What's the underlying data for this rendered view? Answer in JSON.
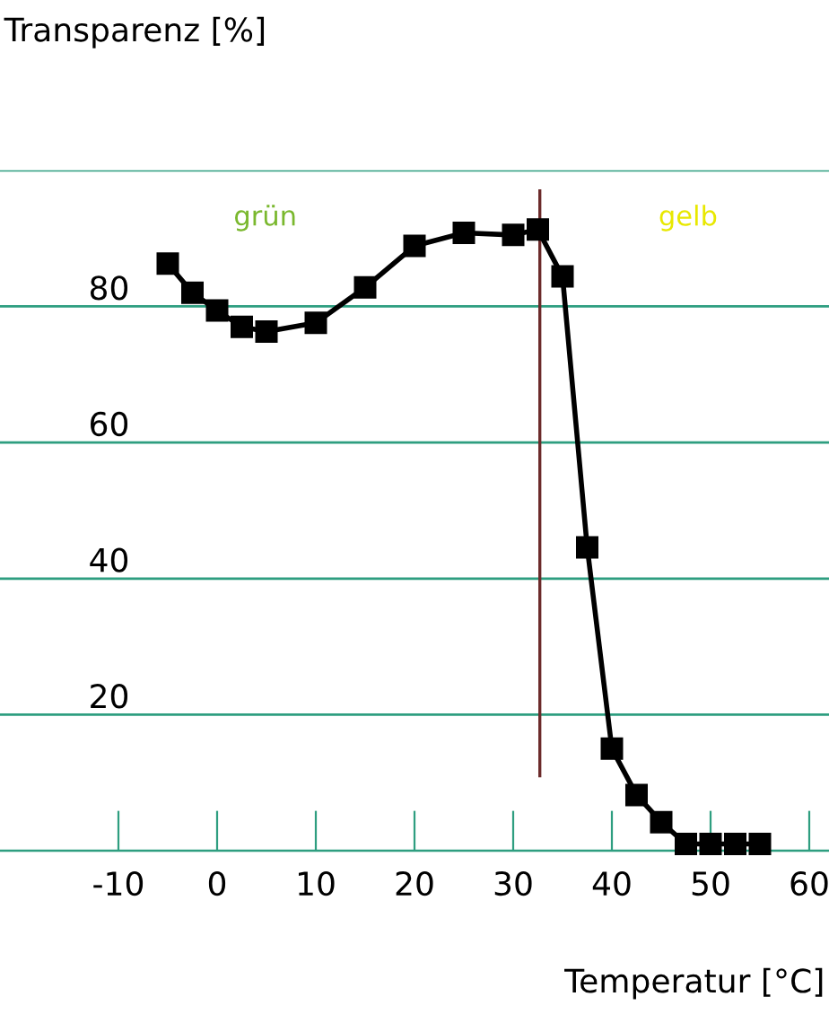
{
  "chart_data": {
    "type": "line",
    "xlabel": "Temperatur [°C]",
    "ylabel": "Transparenz [%]",
    "x": [
      -5,
      -2.5,
      0,
      2.5,
      5,
      10,
      15,
      20,
      25,
      30,
      32.5,
      35,
      37.5,
      40,
      42.5,
      45,
      47.5,
      50,
      52.5,
      55
    ],
    "series": [
      {
        "color": "#000000",
        "values": [
          86.3,
          82,
          79.4,
          77,
          76.3,
          77.6,
          82.8,
          88.9,
          90.8,
          90.5,
          91.3,
          84.4,
          44.6,
          15,
          8.2,
          4.2,
          1,
          1,
          1,
          1
        ]
      }
    ],
    "xlim": [
      -22,
      62
    ],
    "xticks": [
      -10,
      0,
      10,
      20,
      30,
      40,
      50,
      60
    ],
    "ylim": [
      0,
      100
    ],
    "yticks": [
      {
        "value": 0,
        "label": null
      },
      20,
      40,
      60,
      80,
      {
        "value": 100,
        "label": null
      }
    ],
    "grid": "y",
    "marker": "square",
    "line_style": "solid",
    "ref_lines": [
      {
        "axis": "x",
        "value": 32.7,
        "color": "#6b2a2a"
      }
    ],
    "annotations": [
      "grün",
      "gelb"
    ]
  }
}
